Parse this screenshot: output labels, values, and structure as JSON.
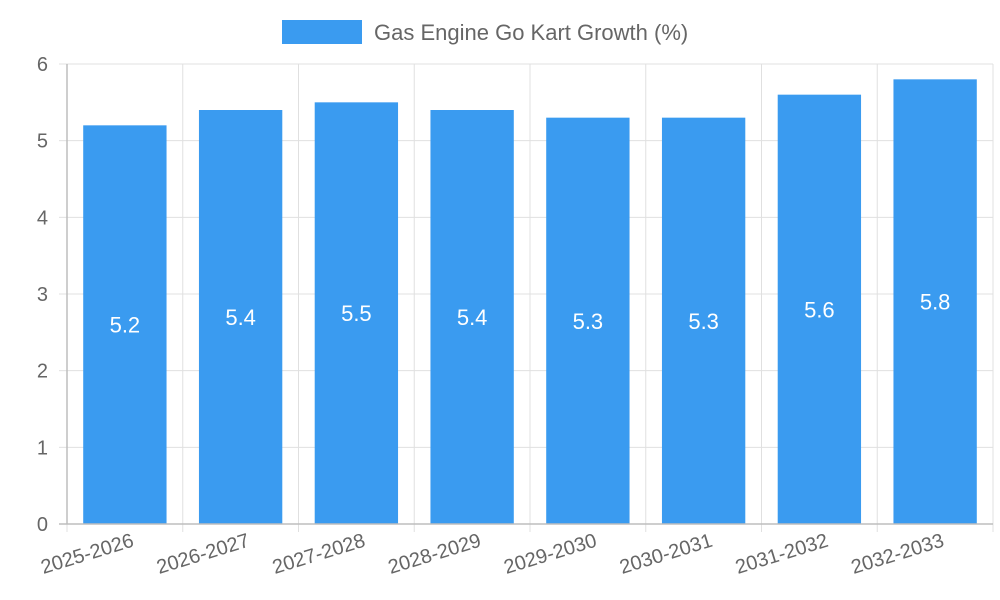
{
  "chart_data": {
    "type": "bar",
    "title": "",
    "xlabel": "",
    "ylabel": "",
    "categories": [
      "2025-2026",
      "2026-2027",
      "2027-2028",
      "2028-2029",
      "2029-2030",
      "2030-2031",
      "2031-2032",
      "2032-2033"
    ],
    "series": [
      {
        "name": "Gas Engine Go Kart Growth (%)",
        "values": [
          5.2,
          5.4,
          5.5,
          5.4,
          5.3,
          5.3,
          5.6,
          5.8
        ],
        "color": "#3a9bf0"
      }
    ],
    "ylim": [
      0,
      6
    ],
    "yticks": [
      "0",
      "1",
      "2",
      "3",
      "4",
      "5",
      "6"
    ],
    "grid": true,
    "legend_position": "top-center"
  },
  "colors": {
    "grid": "#e0e0e0",
    "axis": "#bdbdbd",
    "text": "#666666",
    "label": "#ffffff"
  }
}
